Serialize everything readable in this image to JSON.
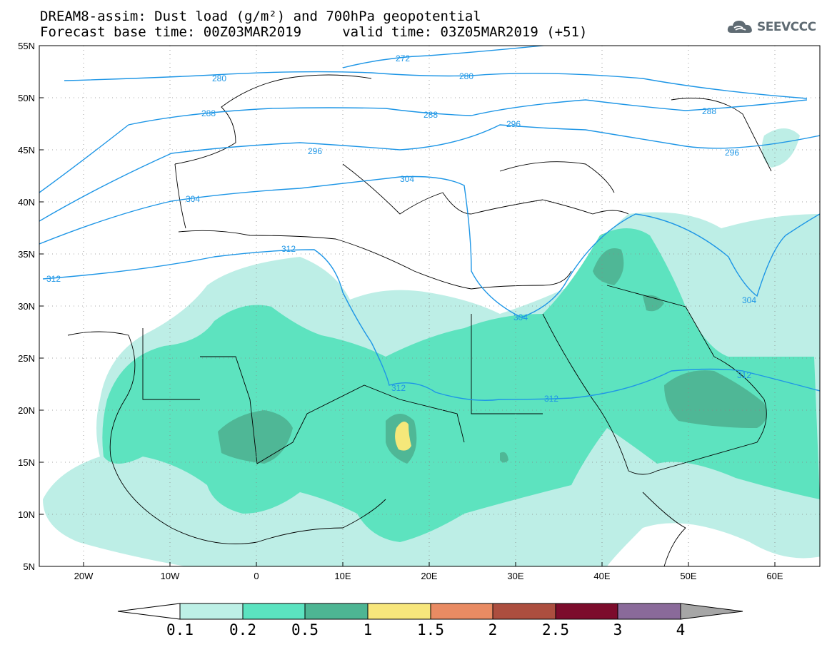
{
  "title": {
    "line1": "DREAM8-assim: Dust load (g/m²) and 700hPa geopotential",
    "line2": "Forecast base time: 00Z03MAR2019     valid time: 03Z05MAR2019 (+51)"
  },
  "logo": {
    "text": "SEEVCCC",
    "icon": "cloud-icon"
  },
  "map": {
    "lat_labels": [
      "55N",
      "50N",
      "45N",
      "40N",
      "35N",
      "30N",
      "25N",
      "20N",
      "15N",
      "10N",
      "5N"
    ],
    "lon_labels": [
      "20W",
      "10W",
      "0",
      "10E",
      "20E",
      "30E",
      "40E",
      "50E",
      "60E"
    ],
    "contour_labels": [
      "272",
      "280",
      "280",
      "288",
      "288",
      "288",
      "296",
      "296",
      "296",
      "304",
      "304",
      "304",
      "304",
      "312",
      "312",
      "312",
      "312",
      "312"
    ],
    "colors": {
      "geopotential": "#1e96e6",
      "dust_0.1": "#bdeee6",
      "dust_0.2": "#5de3bf",
      "dust_0.5": "#4fb796",
      "dust_1": "#f5e87a"
    }
  },
  "colorbar": {
    "labels": [
      "0.1",
      "0.2",
      "0.5",
      "1",
      "1.5",
      "2",
      "2.5",
      "3",
      "4"
    ],
    "colors": [
      "#ffffff",
      "#bdf0e6",
      "#5be3c0",
      "#4db593",
      "#f7e67c",
      "#e98b63",
      "#ac4e3f",
      "#7c0c2c",
      "#8a6a9a",
      "#a6a6a6"
    ]
  }
}
